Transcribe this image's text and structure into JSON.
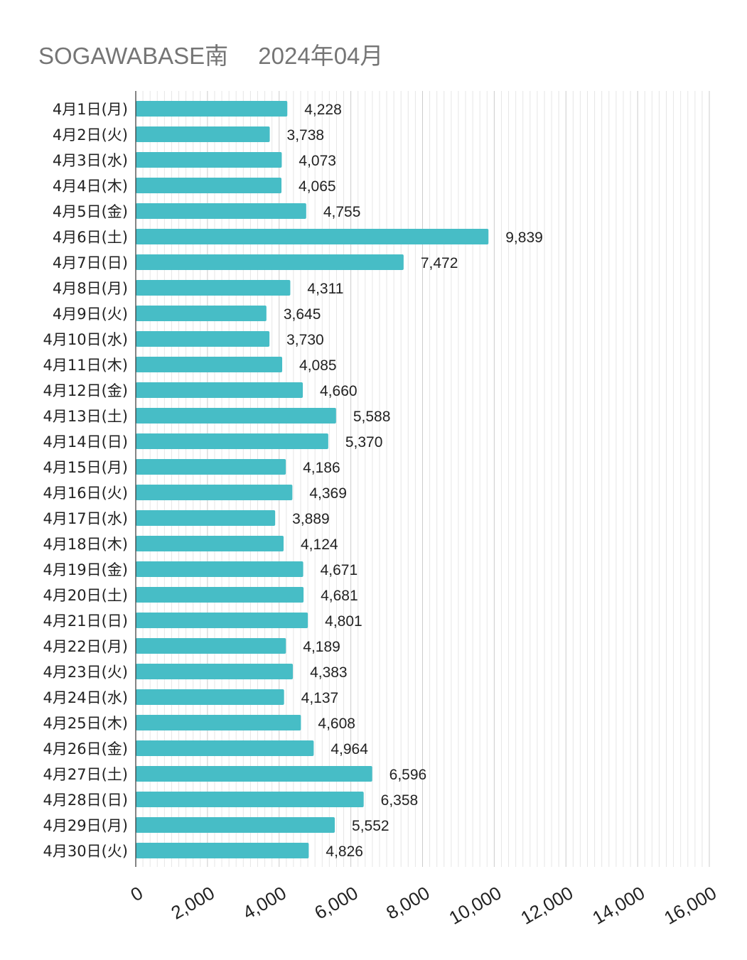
{
  "chart_data": {
    "type": "bar",
    "orientation": "horizontal",
    "title": "SOGAWABASE南　 2024年04月",
    "xlabel": "",
    "ylabel": "",
    "xlim": [
      0,
      16000
    ],
    "xticks": [
      "0",
      "2,000",
      "4,000",
      "6,000",
      "8,000",
      "10,000",
      "12,000",
      "14,000",
      "16,000"
    ],
    "grid": true,
    "legend": "none",
    "bar_color": "#47bdc6",
    "categories": [
      "4月1日(月)",
      "4月2日(火)",
      "4月3日(水)",
      "4月4日(木)",
      "4月5日(金)",
      "4月6日(土)",
      "4月7日(日)",
      "4月8日(月)",
      "4月9日(火)",
      "4月10日(水)",
      "4月11日(木)",
      "4月12日(金)",
      "4月13日(土)",
      "4月14日(日)",
      "4月15日(月)",
      "4月16日(火)",
      "4月17日(水)",
      "4月18日(木)",
      "4月19日(金)",
      "4月20日(土)",
      "4月21日(日)",
      "4月22日(月)",
      "4月23日(火)",
      "4月24日(水)",
      "4月25日(木)",
      "4月26日(金)",
      "4月27日(土)",
      "4月28日(日)",
      "4月29日(月)",
      "4月30日(火)"
    ],
    "values": [
      4228,
      3738,
      4073,
      4065,
      4755,
      9839,
      7472,
      4311,
      3645,
      3730,
      4085,
      4660,
      5588,
      5370,
      4186,
      4369,
      3889,
      4124,
      4671,
      4681,
      4801,
      4189,
      4383,
      4137,
      4608,
      4964,
      6596,
      6358,
      5552,
      4826
    ],
    "data_labels": [
      "4,228",
      "3,738",
      "4,073",
      "4,065",
      "4,755",
      "9,839",
      "7,472",
      "4,311",
      "3,645",
      "3,730",
      "4,085",
      "4,660",
      "5,588",
      "5,370",
      "4,186",
      "4,369",
      "3,889",
      "4,124",
      "4,671",
      "4,681",
      "4,801",
      "4,189",
      "4,383",
      "4,137",
      "4,608",
      "4,964",
      "6,596",
      "6,358",
      "5,552",
      "4,826"
    ]
  }
}
